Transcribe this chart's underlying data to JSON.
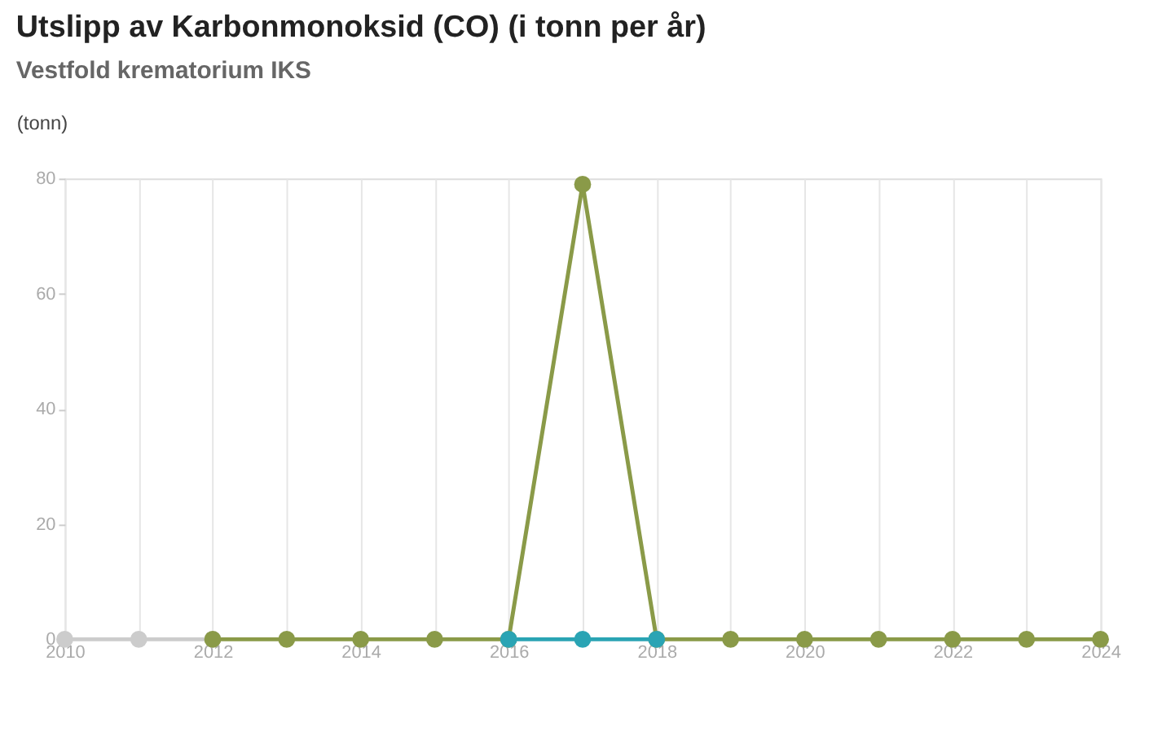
{
  "chart_data": {
    "type": "line",
    "title": "Utslipp av Karbonmonoksid (CO) (i tonn per år)",
    "subtitle": "Vestfold krematorium IKS",
    "ylabel": "(tonn)",
    "series": [
      {
        "color": "#cccccc",
        "x": [
          2010,
          2011,
          2012
        ],
        "values": [
          0,
          0,
          0
        ]
      },
      {
        "color": "#8a9a48",
        "x": [
          2012,
          2013,
          2014,
          2015,
          2016,
          2017,
          2018,
          2019,
          2020,
          2021,
          2022,
          2023,
          2024
        ],
        "values": [
          0,
          0,
          0,
          0,
          0,
          79,
          0,
          0,
          0,
          0,
          0,
          0,
          0
        ]
      },
      {
        "color": "#2aa4b4",
        "x": [
          2016,
          2017,
          2018
        ],
        "values": [
          0,
          0,
          0
        ]
      }
    ],
    "xlim": [
      2010,
      2024
    ],
    "xticks": [
      2010,
      {
        "value": 2011,
        "label": null
      },
      2012,
      {
        "value": 2013,
        "label": null
      },
      2014,
      {
        "value": 2015,
        "label": null
      },
      2016,
      {
        "value": 2017,
        "label": null
      },
      2018,
      {
        "value": 2019,
        "label": null
      },
      2020,
      {
        "value": 2021,
        "label": null
      },
      2022,
      {
        "value": 2023,
        "label": null
      },
      2024
    ],
    "ylim": [
      0,
      80
    ],
    "yticks": [
      0,
      20,
      40,
      60,
      80
    ],
    "grid": "x",
    "marker": "circle",
    "line_style": "solid"
  }
}
